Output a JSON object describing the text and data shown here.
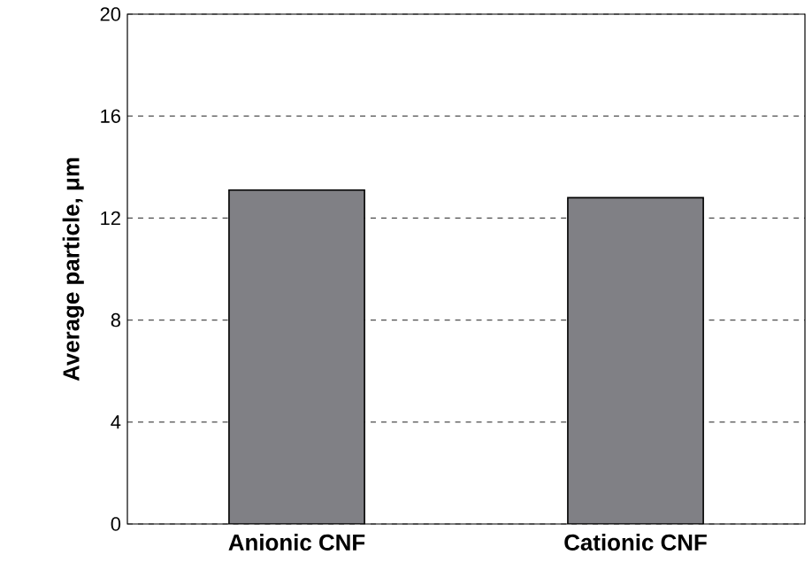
{
  "chart_data": {
    "type": "bar",
    "ylabel": "Average particle, μm",
    "categories": [
      "Anionic CNF",
      "Cationic CNF"
    ],
    "values": [
      13.1,
      12.8
    ],
    "color": "#808085",
    "ylim": [
      0,
      20
    ],
    "yticks": [
      0,
      4,
      8,
      12,
      16,
      20
    ],
    "grid": "y"
  }
}
